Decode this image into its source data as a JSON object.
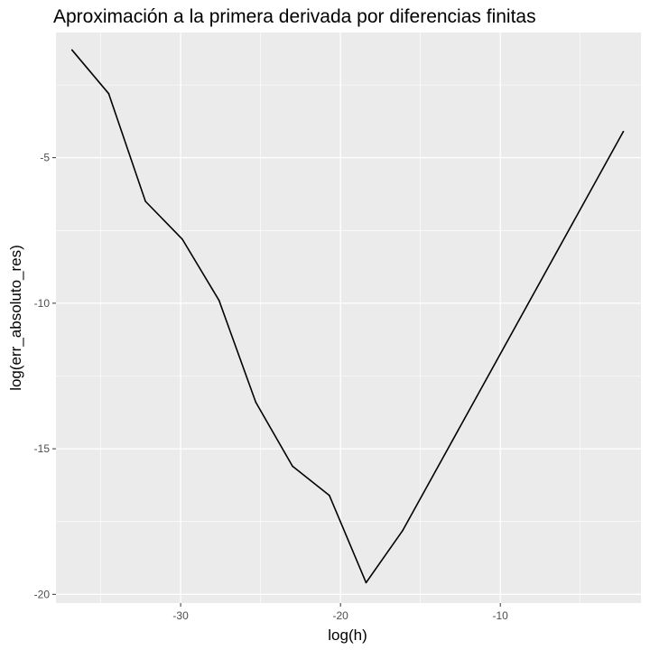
{
  "chart_data": {
    "type": "line",
    "title": "Aproximación a la primera derivada por diferencias finitas",
    "xlabel": "log(h)",
    "ylabel": "log(err_absoluto_res)",
    "xlim": [
      -37.8,
      -1.2
    ],
    "ylim": [
      -20.3,
      -0.7
    ],
    "x_ticks": [
      -30,
      -20,
      -10
    ],
    "y_ticks": [
      -20,
      -15,
      -10,
      -5
    ],
    "x_tick_labels": [
      "-30",
      "-20",
      "-10"
    ],
    "y_tick_labels": [
      "-20",
      "-15",
      "-10",
      "-5"
    ],
    "grid": true,
    "colors": {
      "panel": "#ebebeb",
      "grid": "#ffffff",
      "line": "#000000",
      "tick": "#333333"
    },
    "series": [
      {
        "x": [
          -36.8,
          -34.5,
          -32.2,
          -29.9,
          -27.6,
          -25.3,
          -23.0,
          -20.7,
          -18.4,
          -16.1,
          -2.3
        ],
        "y": [
          -1.3,
          -2.8,
          -6.5,
          -7.8,
          -9.9,
          -13.4,
          -15.6,
          -16.6,
          -19.6,
          -17.8,
          -4.1
        ]
      }
    ]
  }
}
